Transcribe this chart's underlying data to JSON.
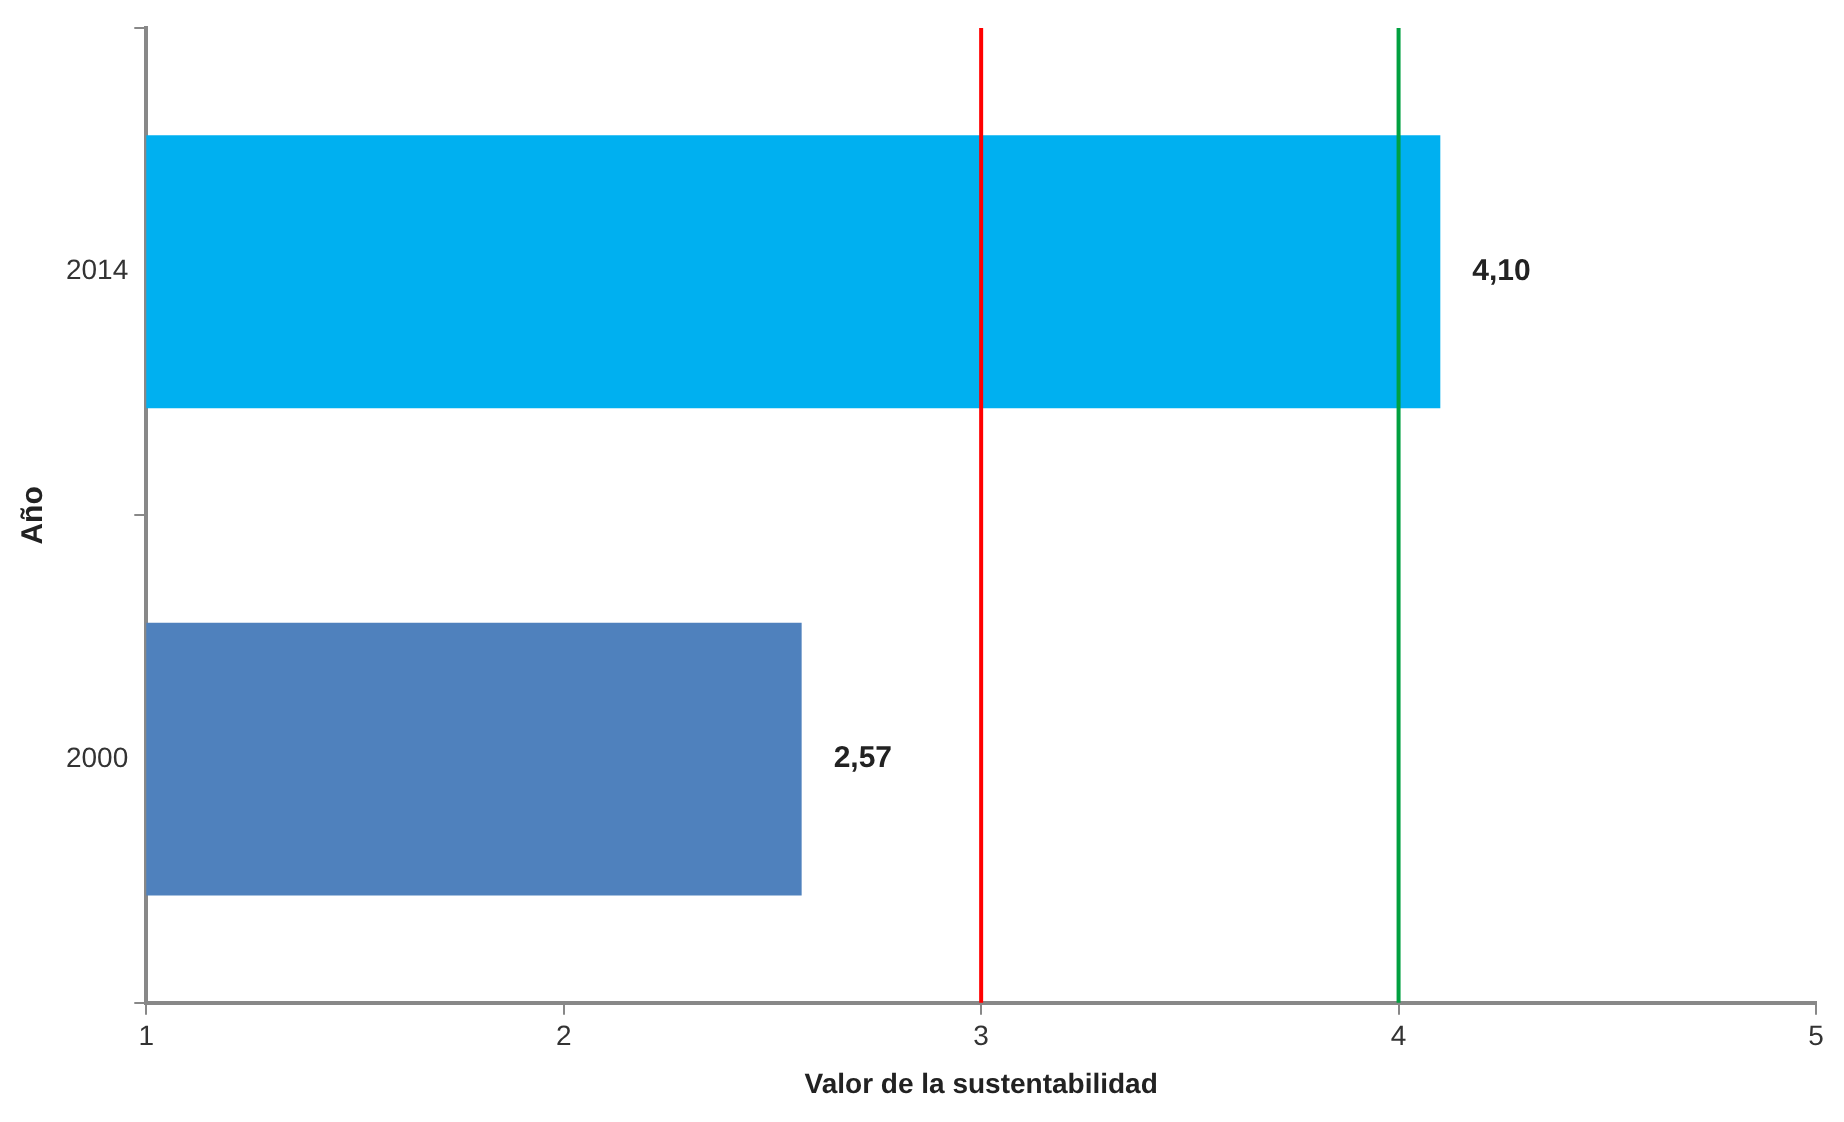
{
  "chart_data": {
    "type": "bar",
    "orientation": "horizontal",
    "xlabel": "Valor de la sustentabilidad",
    "ylabel": "Año",
    "categories": [
      "2014",
      "2000"
    ],
    "values": [
      4.1,
      2.57
    ],
    "colors": [
      "#00b0f0",
      "#4f81bd"
    ],
    "value_labels": [
      "4,10",
      "2,57"
    ],
    "xlim": [
      1,
      5
    ],
    "xticks": [
      1,
      2,
      3,
      4,
      5
    ],
    "ref_lines": [
      {
        "axis": "x",
        "value": 3,
        "color": "#ff0000"
      },
      {
        "axis": "x",
        "value": 4,
        "color": "#00a040"
      }
    ],
    "grid": false,
    "legend": false
  }
}
